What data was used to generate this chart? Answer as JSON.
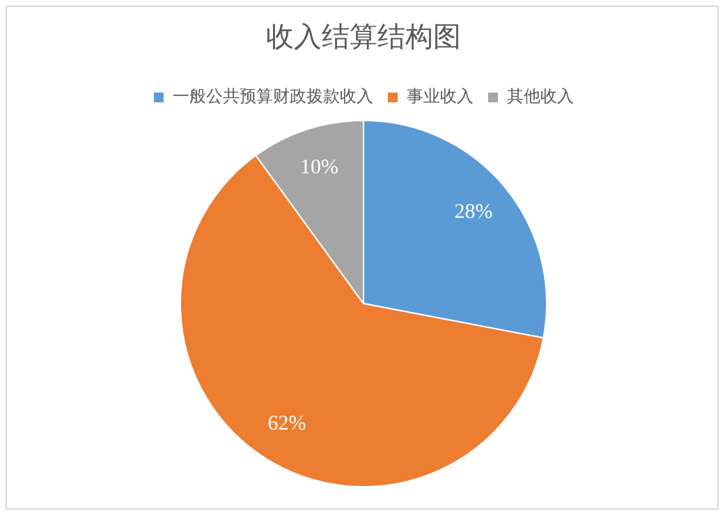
{
  "chart_data": {
    "type": "pie",
    "title": "收入结算结构图",
    "categories": [
      "一般公共预算财政拨款收入",
      "事业收入",
      "其他收入"
    ],
    "values": [
      28,
      62,
      10
    ],
    "colors": [
      "#5b9bd5",
      "#ed7d31",
      "#a5a5a5"
    ],
    "value_labels": [
      "28%",
      "62%",
      "10%"
    ],
    "legend": "top"
  }
}
